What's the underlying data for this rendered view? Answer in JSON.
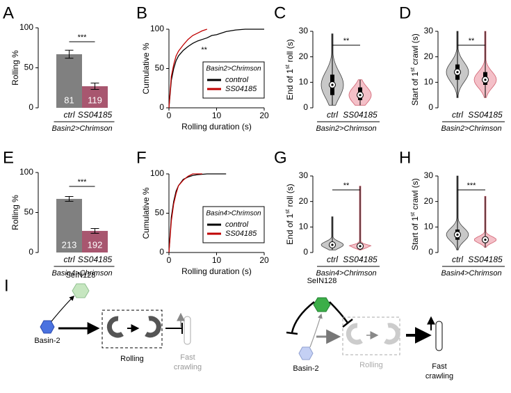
{
  "chart_data": [
    {
      "type": "bar",
      "label": "A",
      "categories": [
        "ctrl",
        "SS04185"
      ],
      "values": [
        67,
        27
      ],
      "errors": [
        5,
        4
      ],
      "bar_texts": [
        "81",
        "119"
      ],
      "colors": [
        "#808080",
        "#a8566f"
      ],
      "ylim": [
        0,
        100
      ],
      "yticks": [
        0,
        50,
        100
      ],
      "ylabel": "Rolling %",
      "group": "Basin2>Chrimson",
      "significance": "***"
    },
    {
      "type": "line",
      "label": "B",
      "xlabel": "Rolling duration (s)",
      "ylabel": "Cumulative %",
      "xlim": [
        0,
        20
      ],
      "xticks": [
        0,
        10,
        20
      ],
      "ylim": [
        0,
        100
      ],
      "yticks": [
        0,
        50,
        100
      ],
      "legend_title": "Basin2>Chrimson",
      "annotation": "**",
      "series": [
        {
          "name": "control",
          "color": "#000000",
          "x": [
            0,
            0.5,
            1,
            1.5,
            2,
            3,
            4,
            5,
            6,
            7,
            8,
            9,
            10,
            12,
            14,
            16,
            18,
            20
          ],
          "values": [
            0,
            35,
            50,
            60,
            66,
            73,
            78,
            82,
            85,
            87,
            89,
            92,
            93,
            97,
            99,
            100,
            100,
            100
          ]
        },
        {
          "name": "SS04185",
          "color": "#c00000",
          "x": [
            0,
            0.5,
            1,
            1.5,
            2,
            3,
            4,
            5,
            6,
            7,
            8
          ],
          "values": [
            0,
            40,
            55,
            66,
            72,
            80,
            87,
            92,
            95,
            98,
            100
          ]
        }
      ]
    },
    {
      "type": "violin",
      "label": "C",
      "ylabel": {
        "pre": "End of 1",
        "sup": "st",
        "post": " roll (s)"
      },
      "categories": [
        "ctrl",
        "SS04185"
      ],
      "colors": [
        "#c8c8c8",
        "#f4c0c8"
      ],
      "edge_colors": [
        "#404040",
        "#d06070"
      ],
      "ylim": [
        0,
        30
      ],
      "yticks": [
        0,
        10,
        20,
        30
      ],
      "group": "Basin2>Chrimson",
      "significance": "**",
      "stats": [
        {
          "min": 1,
          "q1": 5,
          "median": 9,
          "q3": 13,
          "max": 29
        },
        {
          "min": 1,
          "q1": 3,
          "median": 5,
          "q3": 8,
          "max": 11
        }
      ]
    },
    {
      "type": "violin",
      "label": "D",
      "ylabel": {
        "pre": "Start of 1",
        "sup": "st",
        "post": " crawl (s)"
      },
      "categories": [
        "ctrl",
        "SS04185"
      ],
      "colors": [
        "#c8c8c8",
        "#f4c0c8"
      ],
      "edge_colors": [
        "#404040",
        "#d06070"
      ],
      "ylim": [
        0,
        30
      ],
      "yticks": [
        0,
        10,
        20,
        30
      ],
      "group": "Basin2>Chrimson",
      "significance": "**",
      "stats": [
        {
          "min": 4,
          "q1": 11,
          "median": 14,
          "q3": 17,
          "max": 30
        },
        {
          "min": 4,
          "q1": 9,
          "median": 11,
          "q3": 14,
          "max": 30
        }
      ]
    },
    {
      "type": "bar",
      "label": "E",
      "categories": [
        "ctrl",
        "SS04185"
      ],
      "values": [
        67,
        27
      ],
      "errors": [
        3,
        3
      ],
      "bar_texts": [
        "213",
        "192"
      ],
      "colors": [
        "#808080",
        "#a8566f"
      ],
      "ylim": [
        0,
        100
      ],
      "yticks": [
        0,
        50,
        100
      ],
      "ylabel": "Rolling %",
      "group": "Basin4>Chrimson",
      "significance": "***"
    },
    {
      "type": "line",
      "label": "F",
      "xlabel": "Rolling duration (s)",
      "ylabel": "Cumulative %",
      "xlim": [
        0,
        20
      ],
      "xticks": [
        0,
        10,
        20
      ],
      "ylim": [
        0,
        100
      ],
      "yticks": [
        0,
        50,
        100
      ],
      "legend_title": "Basin4>Chrimson",
      "series": [
        {
          "name": "control",
          "color": "#000000",
          "x": [
            0,
            0.5,
            1,
            1.5,
            2,
            3,
            4,
            5,
            6,
            8,
            10,
            12
          ],
          "values": [
            0,
            45,
            65,
            78,
            85,
            93,
            96,
            98,
            99,
            100,
            100,
            100
          ]
        },
        {
          "name": "SS04185",
          "color": "#c00000",
          "x": [
            0,
            0.5,
            1,
            1.5,
            2,
            3,
            4,
            5,
            6,
            7
          ],
          "values": [
            0,
            40,
            62,
            75,
            85,
            92,
            97,
            100,
            100,
            100
          ]
        }
      ]
    },
    {
      "type": "violin",
      "label": "G",
      "ylabel": {
        "pre": "End of 1",
        "sup": "st",
        "post": " roll (s)"
      },
      "categories": [
        "ctrl",
        "SS04185"
      ],
      "colors": [
        "#c8c8c8",
        "#f4c0c8"
      ],
      "edge_colors": [
        "#404040",
        "#d06070"
      ],
      "ylim": [
        0,
        30
      ],
      "yticks": [
        0,
        10,
        20,
        30
      ],
      "group": "Basin4>Chrimson",
      "significance": "**",
      "stats": [
        {
          "min": 1,
          "q1": 2,
          "median": 3,
          "q3": 4,
          "max": 14
        },
        {
          "min": 1,
          "q1": 2,
          "median": 2.5,
          "q3": 3,
          "max": 26
        }
      ]
    },
    {
      "type": "violin",
      "label": "H",
      "ylabel": {
        "pre": "Start of 1",
        "sup": "st",
        "post": " crawl (s)"
      },
      "categories": [
        "ctrl",
        "SS04185"
      ],
      "colors": [
        "#c8c8c8",
        "#f4c0c8"
      ],
      "edge_colors": [
        "#404040",
        "#d06070"
      ],
      "ylim": [
        0,
        30
      ],
      "yticks": [
        0,
        10,
        20,
        30
      ],
      "group": "Basin4>Chrimson",
      "significance": "***",
      "stats": [
        {
          "min": 1,
          "q1": 5,
          "median": 7,
          "q3": 9,
          "max": 30
        },
        {
          "min": 2,
          "q1": 4,
          "median": 5,
          "q3": 6,
          "max": 22
        }
      ]
    }
  ],
  "diagram": {
    "label": "I",
    "left": {
      "sein": "SeIN128",
      "basin": "Basin-2",
      "rolling": "Rolling",
      "crawling": [
        "Fast",
        "crawling"
      ]
    },
    "right": {
      "sein": "SeIN128",
      "basin": "Basin-2",
      "rolling": "Rolling",
      "crawling": [
        "Fast",
        "crawling"
      ]
    }
  }
}
